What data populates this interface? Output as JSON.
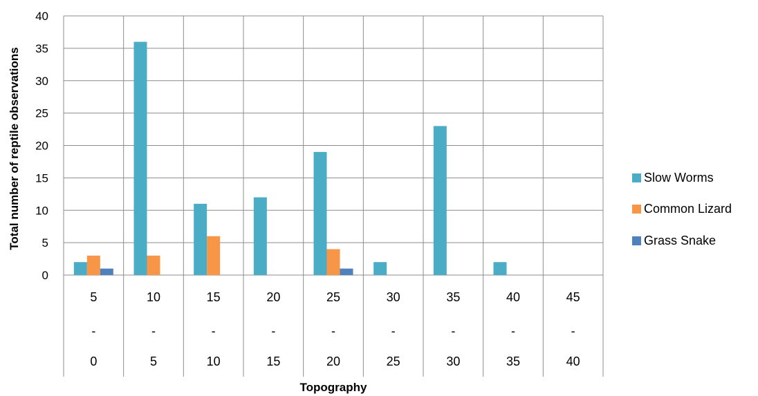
{
  "chart_data": {
    "type": "bar",
    "title": "",
    "xlabel": "Topography",
    "ylabel": "Total number of reptile observations",
    "ylim": [
      0,
      40
    ],
    "yticks": [
      0,
      5,
      10,
      15,
      20,
      25,
      30,
      35,
      40
    ],
    "grid": true,
    "legend_position": "right",
    "categories": [
      {
        "top": "5",
        "sep": "-",
        "bottom": "0"
      },
      {
        "top": "10",
        "sep": "-",
        "bottom": "5"
      },
      {
        "top": "15",
        "sep": "-",
        "bottom": "10"
      },
      {
        "top": "20",
        "sep": "-",
        "bottom": "15"
      },
      {
        "top": "25",
        "sep": "-",
        "bottom": "20"
      },
      {
        "top": "30",
        "sep": "-",
        "bottom": "25"
      },
      {
        "top": "35",
        "sep": "-",
        "bottom": "30"
      },
      {
        "top": "40",
        "sep": "-",
        "bottom": "35"
      },
      {
        "top": "45",
        "sep": "-",
        "bottom": "40"
      }
    ],
    "series": [
      {
        "name": "Slow Worms",
        "color": "#4bacc6",
        "values": [
          2,
          36,
          11,
          12,
          19,
          2,
          23,
          2,
          0
        ]
      },
      {
        "name": "Common Lizard",
        "color": "#f79646",
        "values": [
          3,
          3,
          6,
          0,
          4,
          0,
          0,
          0,
          0
        ]
      },
      {
        "name": "Grass Snake",
        "color": "#4f81bd",
        "values": [
          1,
          0,
          0,
          0,
          1,
          0,
          0,
          0,
          0
        ]
      }
    ]
  }
}
